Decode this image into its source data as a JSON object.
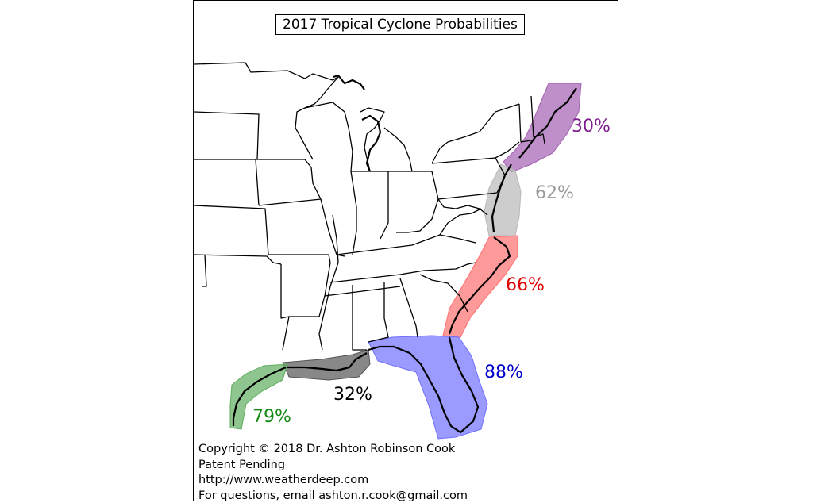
{
  "title": "2017 Tropical Cyclone Probabilities",
  "regions": [
    {
      "id": "new-england",
      "label": "30%",
      "fill": "#a35fb0",
      "text_color": "#7f1f8f"
    },
    {
      "id": "mid-atlantic",
      "label": "62%",
      "fill": "#b8b8b8",
      "text_color": "#9a9a9a"
    },
    {
      "id": "carolinas",
      "label": "66%",
      "fill": "#ff6f6f",
      "text_color": "#e00000"
    },
    {
      "id": "florida",
      "label": "88%",
      "fill": "#6f6fff",
      "text_color": "#0000cc"
    },
    {
      "id": "central-gulf",
      "label": "32%",
      "fill": "#555555",
      "text_color": "#000000"
    },
    {
      "id": "texas",
      "label": "79%",
      "fill": "#5fae5f",
      "text_color": "#138a13"
    }
  ],
  "credits": [
    "Copyright © 2018 Dr. Ashton Robinson Cook",
    "Patent Pending",
    "http://www.weatherdeep.com",
    "For questions, email ashton.r.cook@gmail.com"
  ]
}
